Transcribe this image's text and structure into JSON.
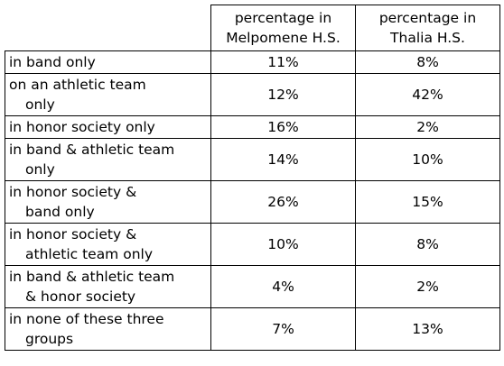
{
  "table": {
    "header": [
      "",
      "percentage in\nMelpomene H.S.",
      "percentage in\nThalia H.S."
    ],
    "rows": [
      [
        "in band only",
        "11%",
        "8%"
      ],
      [
        "on an athletic team\nonly",
        "12%",
        "42%"
      ],
      [
        "in honor society only",
        "16%",
        "2%"
      ],
      [
        "in band & athletic team\nonly",
        "14%",
        "10%"
      ],
      [
        "in honor society &\nband only",
        "26%",
        "15%"
      ],
      [
        "in honor society &\nathletic team only",
        "10%",
        "8%"
      ],
      [
        "in band & athletic team\n& honor society",
        "4%",
        "2%"
      ],
      [
        "in none of these three\ngroups",
        "7%",
        "13%"
      ]
    ]
  }
}
